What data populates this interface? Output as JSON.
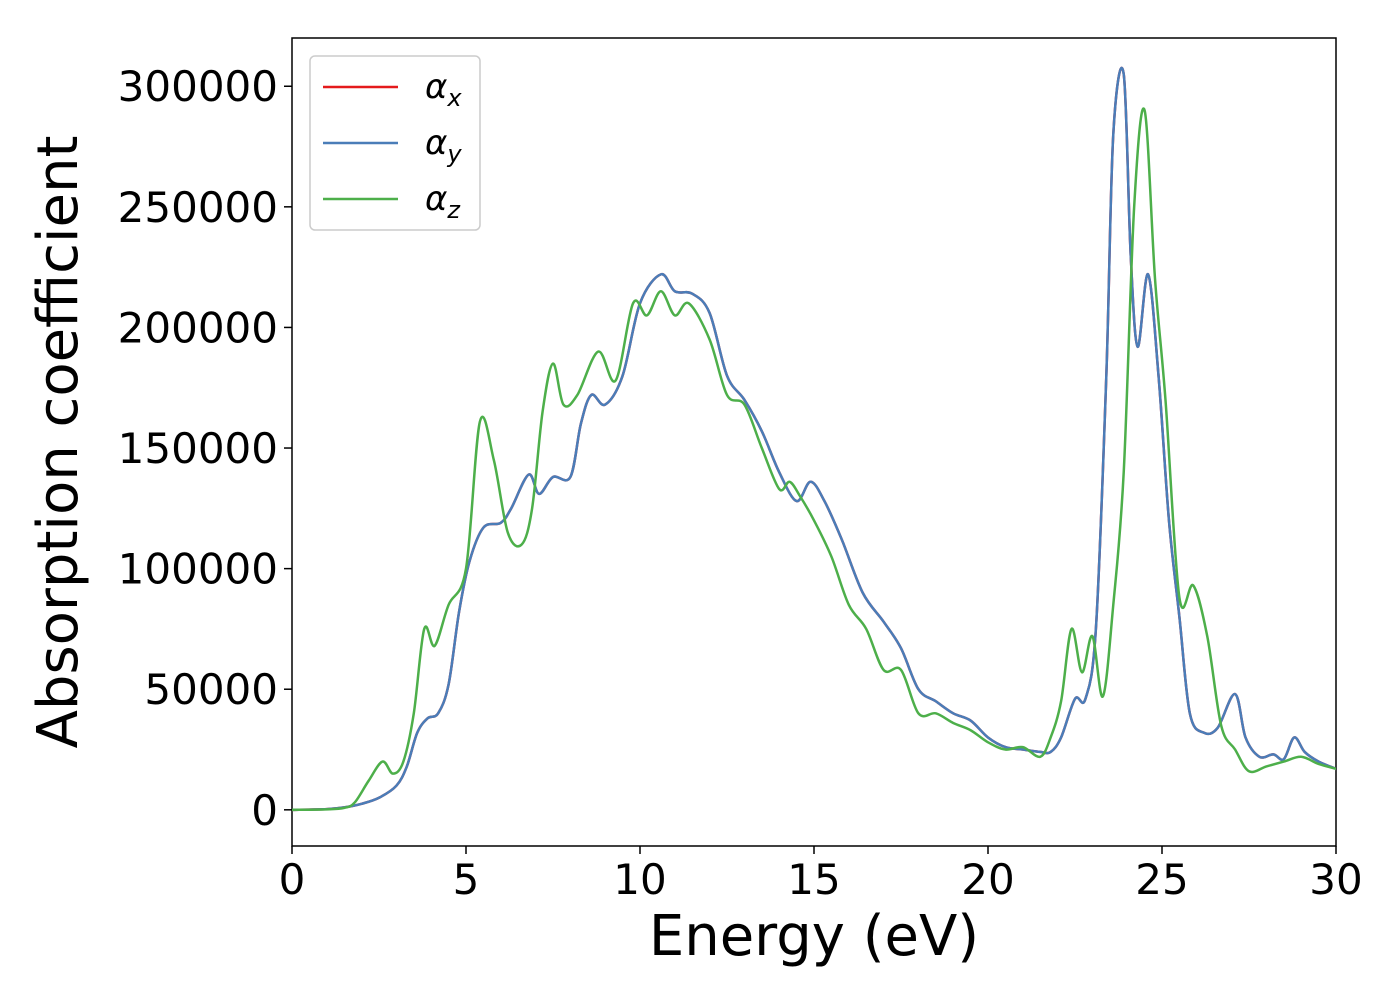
{
  "chart_data": {
    "type": "line",
    "title": "",
    "xlabel": "Energy (eV)",
    "ylabel": "Absorption coefficient",
    "xlim": [
      0,
      30
    ],
    "ylim": [
      -15000,
      320000
    ],
    "xticks": [
      0,
      5,
      10,
      15,
      20,
      25,
      30
    ],
    "xtick_labels": [
      "0",
      "5",
      "10",
      "15",
      "20",
      "25",
      "30"
    ],
    "yticks": [
      0,
      50000,
      100000,
      150000,
      200000,
      250000,
      300000
    ],
    "ytick_labels": [
      "0",
      "50000",
      "100000",
      "150000",
      "200000",
      "250000",
      "300000"
    ],
    "grid": false,
    "legend_placement": "top-left",
    "series": [
      {
        "name": "αx",
        "legend_base": "α",
        "legend_sub": "x",
        "color": "#e41a1c",
        "x": [
          0,
          1,
          1.5,
          2,
          2.5,
          3,
          3.3,
          3.6,
          3.9,
          4.2,
          4.5,
          4.8,
          5.1,
          5.5,
          6,
          6.3,
          6.8,
          7.1,
          7.5,
          8,
          8.3,
          8.6,
          9,
          9.5,
          10,
          10.6,
          11,
          11.5,
          12,
          12.5,
          13,
          13.5,
          14,
          14.5,
          14.9,
          15.3,
          15.8,
          16.4,
          17,
          17.5,
          18,
          18.5,
          19,
          19.5,
          20,
          20.5,
          21,
          21.5,
          21.8,
          22.1,
          22.5,
          22.8,
          23.1,
          23.4,
          23.6,
          23.9,
          24.1,
          24.3,
          24.6,
          24.9,
          25.2,
          25.5,
          25.8,
          26.2,
          26.6,
          27.1,
          27.4,
          27.8,
          28.2,
          28.5,
          28.8,
          29.1,
          29.5,
          30
        ],
        "values": [
          0,
          300,
          1000,
          2500,
          5000,
          10000,
          18000,
          32000,
          38000,
          40000,
          52000,
          82000,
          103000,
          117000,
          119000,
          125000,
          139000,
          131000,
          138000,
          138000,
          160000,
          172000,
          168000,
          180000,
          210000,
          222000,
          215000,
          214000,
          206000,
          180000,
          170000,
          157000,
          140000,
          128000,
          136000,
          128000,
          112000,
          90000,
          78000,
          67000,
          50000,
          45000,
          40000,
          37000,
          30000,
          26000,
          25000,
          24000,
          24000,
          30000,
          46000,
          46000,
          75000,
          180000,
          280000,
          305000,
          230000,
          192000,
          222000,
          180000,
          120000,
          80000,
          40000,
          32000,
          34000,
          48000,
          30000,
          22000,
          23000,
          21000,
          30000,
          24000,
          20000,
          17000
        ]
      },
      {
        "name": "αy",
        "legend_base": "α",
        "legend_sub": "y",
        "color": "#4a7db8",
        "x": [
          0,
          1,
          1.5,
          2,
          2.5,
          3,
          3.3,
          3.6,
          3.9,
          4.2,
          4.5,
          4.8,
          5.1,
          5.5,
          6,
          6.3,
          6.8,
          7.1,
          7.5,
          8,
          8.3,
          8.6,
          9,
          9.5,
          10,
          10.6,
          11,
          11.5,
          12,
          12.5,
          13,
          13.5,
          14,
          14.5,
          14.9,
          15.3,
          15.8,
          16.4,
          17,
          17.5,
          18,
          18.5,
          19,
          19.5,
          20,
          20.5,
          21,
          21.5,
          21.8,
          22.1,
          22.5,
          22.8,
          23.1,
          23.4,
          23.6,
          23.9,
          24.1,
          24.3,
          24.6,
          24.9,
          25.2,
          25.5,
          25.8,
          26.2,
          26.6,
          27.1,
          27.4,
          27.8,
          28.2,
          28.5,
          28.8,
          29.1,
          29.5,
          30
        ],
        "values": [
          0,
          300,
          1000,
          2500,
          5000,
          10000,
          18000,
          32000,
          38000,
          40000,
          52000,
          82000,
          103000,
          117000,
          119000,
          125000,
          139000,
          131000,
          138000,
          138000,
          160000,
          172000,
          168000,
          180000,
          210000,
          222000,
          215000,
          214000,
          206000,
          180000,
          170000,
          157000,
          140000,
          128000,
          136000,
          128000,
          112000,
          90000,
          78000,
          67000,
          50000,
          45000,
          40000,
          37000,
          30000,
          26000,
          25000,
          24000,
          24000,
          30000,
          46000,
          46000,
          75000,
          180000,
          280000,
          305000,
          230000,
          192000,
          222000,
          180000,
          120000,
          80000,
          40000,
          32000,
          34000,
          48000,
          30000,
          22000,
          23000,
          21000,
          30000,
          24000,
          20000,
          17000
        ]
      },
      {
        "name": "αz",
        "legend_base": "α",
        "legend_sub": "z",
        "color": "#4daf4a",
        "x": [
          0,
          1,
          1.5,
          1.8,
          2.2,
          2.6,
          2.9,
          3.2,
          3.5,
          3.8,
          4.1,
          4.5,
          5,
          5.4,
          5.8,
          6.2,
          6.6,
          6.9,
          7.2,
          7.5,
          7.8,
          8.2,
          8.8,
          9.3,
          9.8,
          10.2,
          10.6,
          11,
          11.4,
          12,
          12.5,
          13,
          13.5,
          14,
          14.3,
          14.6,
          15,
          15.5,
          16,
          16.5,
          17,
          17.5,
          18,
          18.5,
          19,
          19.5,
          20,
          20.5,
          21,
          21.5,
          21.8,
          22.1,
          22.4,
          22.7,
          23,
          23.3,
          23.6,
          23.9,
          24.2,
          24.5,
          24.8,
          25.1,
          25.5,
          25.9,
          26.3,
          26.7,
          27.1,
          27.5,
          28,
          28.5,
          29,
          29.5,
          30
        ],
        "values": [
          0,
          200,
          800,
          3000,
          12000,
          20000,
          15000,
          20000,
          40000,
          75000,
          68000,
          85000,
          100000,
          161000,
          145000,
          115000,
          110000,
          125000,
          165000,
          185000,
          168000,
          172000,
          190000,
          178000,
          210000,
          205000,
          215000,
          205000,
          210000,
          195000,
          172000,
          168000,
          150000,
          133000,
          136000,
          130000,
          120000,
          105000,
          85000,
          75000,
          58000,
          58000,
          40000,
          40000,
          36000,
          33000,
          28000,
          25000,
          26000,
          22000,
          30000,
          45000,
          75000,
          57000,
          72000,
          47000,
          85000,
          140000,
          250000,
          290000,
          220000,
          170000,
          88000,
          93000,
          72000,
          35000,
          25000,
          16000,
          18000,
          20000,
          22000,
          19000,
          17000
        ]
      }
    ]
  }
}
